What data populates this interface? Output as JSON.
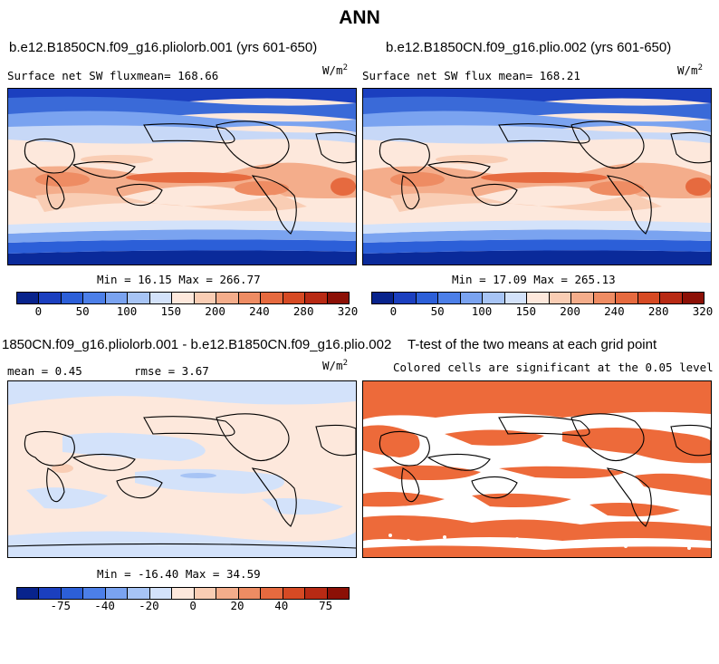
{
  "figure_title": "ANN",
  "units_label": "W/m",
  "units_exp": "2",
  "panels": {
    "top_left": {
      "title": "b.e12.B1850CN.f09_g16.pliolorb.001 (yrs 601-650)",
      "field_label": "Surface net SW flux",
      "mean_text": "mean= 168.66",
      "minmax_text": "Min =  16.15 Max = 266.77"
    },
    "top_right": {
      "title": "b.e12.B1850CN.f09_g16.plio.002 (yrs 601-650)",
      "field_label": "Surface net SW flux",
      "mean_text": "mean= 168.21",
      "minmax_text": "Min =  17.09 Max = 265.13"
    },
    "bottom_left": {
      "title": "1850CN.f09_g16.pliolorb.001 - b.e12.B1850CN.f09_g16.plio.002",
      "mean_text": "mean =   0.45",
      "rmse_text": "rmse =   3.67",
      "minmax_text": "Min = -16.40 Max =  34.59"
    },
    "bottom_right": {
      "title": "T-test of the two means at each grid point",
      "subtitle": "Colored cells are significant at the 0.05 level"
    }
  },
  "colorbar_top": {
    "colors": [
      "#08238c",
      "#1b3fbf",
      "#2c5fd8",
      "#4c7fe8",
      "#7aa3f0",
      "#a7c4f5",
      "#d3e2fa",
      "#fde8dc",
      "#f9cdb4",
      "#f4ad8b",
      "#ee8c63",
      "#e66a3f",
      "#d64a24",
      "#b82a14",
      "#8c1006"
    ],
    "ticks": [
      "0",
      "50",
      "100",
      "150",
      "200",
      "240",
      "280",
      "320"
    ]
  },
  "colorbar_diff": {
    "colors": [
      "#08238c",
      "#1b3fbf",
      "#2c5fd8",
      "#4c7fe8",
      "#7aa3f0",
      "#a7c4f5",
      "#d3e2fa",
      "#fde8dc",
      "#f9cdb4",
      "#f4ad8b",
      "#ee8c63",
      "#e66a3f",
      "#d64a24",
      "#b82a14",
      "#8c1006"
    ],
    "ticks": [
      "-75",
      "-40",
      "-20",
      "0",
      "20",
      "40",
      "75"
    ]
  },
  "ttest_color": "#ed6a3a"
}
